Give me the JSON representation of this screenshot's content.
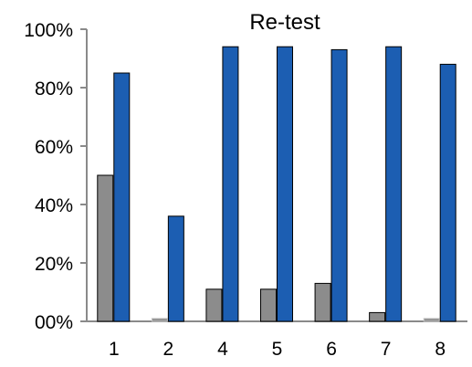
{
  "chart_data": {
    "type": "bar",
    "title": "Re-test",
    "xlabel": "",
    "ylabel": "",
    "categories": [
      "1",
      "2",
      "4",
      "5",
      "6",
      "7",
      "8"
    ],
    "series": [
      {
        "values": [
          0.5,
          0.01,
          0.11,
          0.11,
          0.13,
          0.03,
          0.01
        ],
        "color": "#8c8c8c"
      },
      {
        "values": [
          0.85,
          0.36,
          0.94,
          0.94,
          0.93,
          0.94,
          0.88
        ],
        "color": "#1c5eb2"
      }
    ],
    "ylim": [
      0,
      1
    ],
    "y_ticks": [
      "00%",
      "20%",
      "40%",
      "60%",
      "80%",
      "100%"
    ],
    "grid": false,
    "legend": "none"
  }
}
